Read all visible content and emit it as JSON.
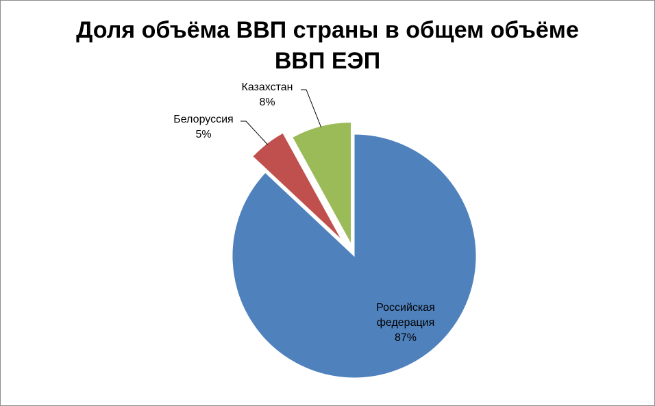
{
  "chart_data": {
    "type": "pie",
    "title_lines": [
      "Доля объёма ВВП страны в общем объёме",
      "ВВП ЕЭП"
    ],
    "slices": [
      {
        "label": "Российская федерация",
        "label_lines": [
          "Российская",
          "федерация"
        ],
        "percent_label": "87%",
        "value": 87,
        "color": "#4F81BD"
      },
      {
        "label": "Белоруссия",
        "label_lines": [
          "Белоруссия"
        ],
        "percent_label": "5%",
        "value": 5,
        "color": "#C0504D"
      },
      {
        "label": "Казахстан",
        "label_lines": [
          "Казахстан"
        ],
        "percent_label": "8%",
        "value": 8,
        "color": "#9BBB59"
      }
    ]
  }
}
